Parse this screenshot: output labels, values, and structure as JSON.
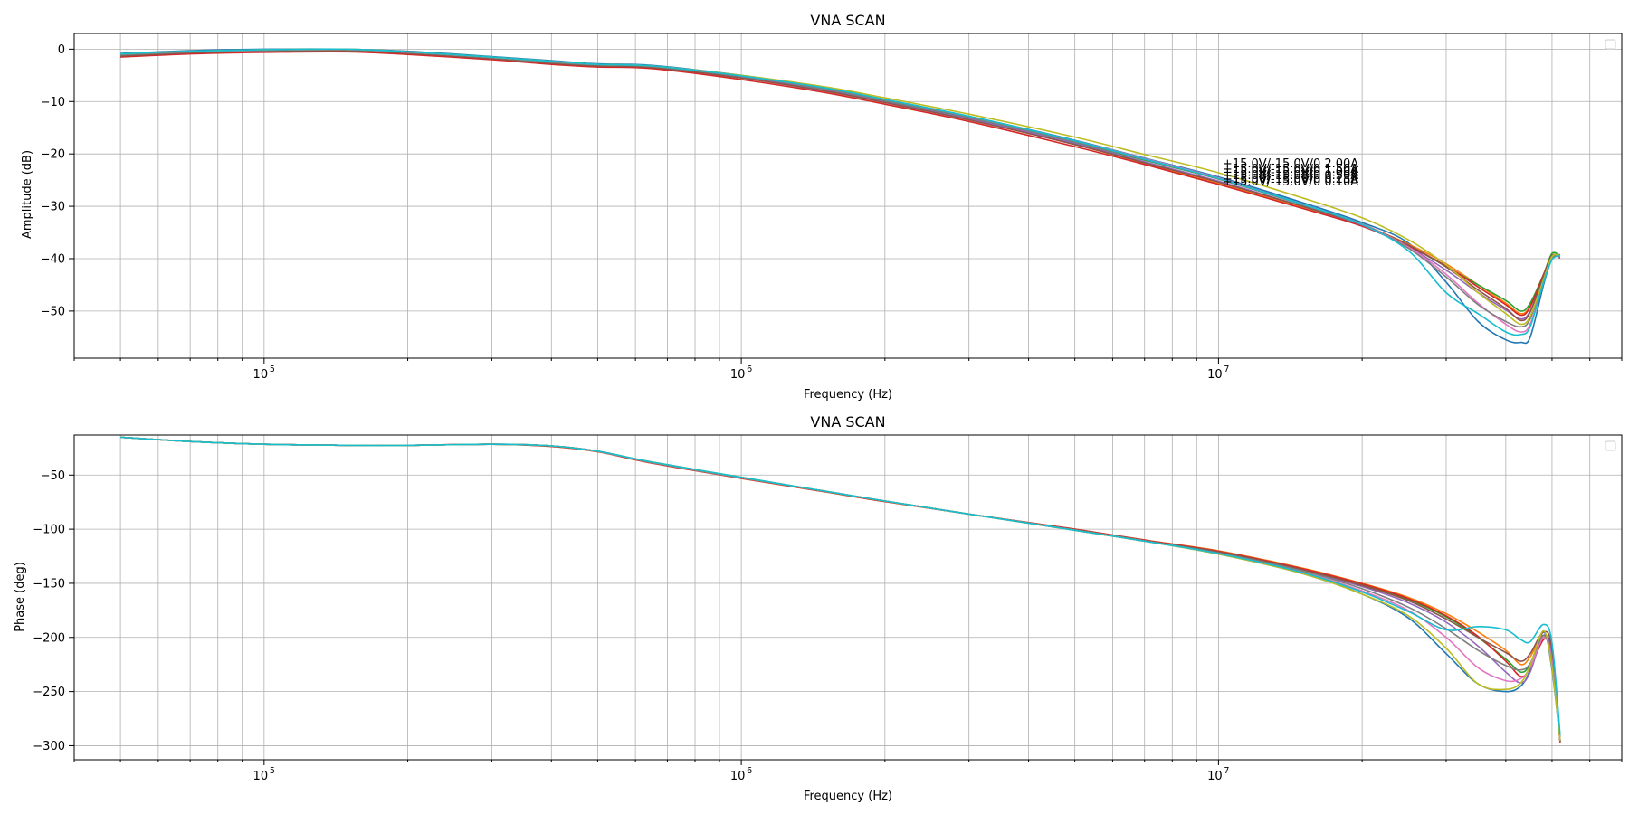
{
  "chart_data": [
    {
      "type": "line",
      "title": "VNA SCAN",
      "xlabel": "Frequency (Hz)",
      "ylabel": "Amplitude (dB)",
      "xscale": "log",
      "xlim": [
        40000,
        70000000
      ],
      "ylim": [
        -59,
        3
      ],
      "yticks": [
        0,
        -10,
        -20,
        -30,
        -40,
        -50
      ],
      "ytick_labels": [
        "0",
        "−10",
        "−20",
        "−30",
        "−40",
        "−50"
      ],
      "xticks": [
        100000,
        1000000,
        10000000
      ],
      "xtick_labels": [
        "10",
        "10",
        "10"
      ],
      "xtick_exponents": [
        "5",
        "6",
        "7"
      ],
      "grid": true,
      "legend": "top-right (empty)",
      "annotations": [
        {
          "text": "+15.0V/-15.0V/0 2.00A",
          "x": 10200000,
          "y": -22.6
        },
        {
          "text": "+15.0V/-15.0V/0 1.50A",
          "x": 10200000,
          "y": -23.6
        },
        {
          "text": "+15.0V/-15.0V/0 1.00A",
          "x": 10200000,
          "y": -24.2
        },
        {
          "text": "+15.0V/-15.0V/0 0.50A",
          "x": 10200000,
          "y": -24.8
        },
        {
          "text": "+15.0V/-15.0V/0 0.25A",
          "x": 10200000,
          "y": -25.5
        },
        {
          "text": "+15.0V/-15.0V/0 0.10A",
          "x": 10200000,
          "y": -26.0
        }
      ],
      "x": [
        50000,
        70000,
        100000,
        150000,
        200000,
        300000,
        400000,
        500000,
        650000,
        1000000,
        1500000,
        2000000,
        3000000,
        5000000,
        7000000,
        10000000,
        15000000,
        20000000,
        25000000,
        30000000,
        35000000,
        40000000,
        43000000,
        45000000,
        48000000,
        50000000,
        52000000
      ],
      "series": [
        {
          "color": "#1f77b4",
          "values": [
            -0.8,
            -0.3,
            0,
            0,
            -0.4,
            -1.4,
            -2.2,
            -2.8,
            -3.1,
            -5.0,
            -7.4,
            -9.6,
            -12.8,
            -17.4,
            -20.8,
            -24.4,
            -29.3,
            -33.1,
            -37.0,
            -44.5,
            -52.0,
            -55.5,
            -56.0,
            -55.0,
            -45.0,
            -40.0,
            -39.2
          ]
        },
        {
          "color": "#ff7f0e",
          "values": [
            -1.3,
            -0.7,
            -0.4,
            -0.3,
            -0.8,
            -1.8,
            -2.7,
            -3.2,
            -3.5,
            -5.5,
            -8.0,
            -10.2,
            -13.5,
            -18.2,
            -21.8,
            -25.6,
            -30.2,
            -33.6,
            -37.2,
            -41.0,
            -45.0,
            -48.5,
            -50.5,
            -49.0,
            -43.0,
            -39.5,
            -39.8
          ]
        },
        {
          "color": "#2ca02c",
          "values": [
            -1.1,
            -0.5,
            -0.2,
            -0.1,
            -0.6,
            -1.6,
            -2.5,
            -3.0,
            -3.3,
            -5.3,
            -7.7,
            -9.9,
            -13.1,
            -17.8,
            -21.2,
            -24.8,
            -29.7,
            -33.4,
            -37.5,
            -41.5,
            -45.0,
            -48.0,
            -50.0,
            -48.5,
            -43.0,
            -39.0,
            -39.5
          ]
        },
        {
          "color": "#d62728",
          "values": [
            -1.5,
            -0.9,
            -0.6,
            -0.5,
            -1.0,
            -2.0,
            -2.9,
            -3.4,
            -3.7,
            -5.8,
            -8.3,
            -10.5,
            -13.8,
            -18.6,
            -22.0,
            -25.8,
            -30.4,
            -33.8,
            -37.6,
            -41.4,
            -45.4,
            -48.8,
            -50.8,
            -49.2,
            -43.0,
            -39.4,
            -39.9
          ]
        },
        {
          "color": "#9467bd",
          "values": [
            -1.2,
            -0.6,
            -0.3,
            -0.2,
            -0.7,
            -1.7,
            -2.6,
            -3.1,
            -3.4,
            -5.4,
            -7.9,
            -10.1,
            -13.3,
            -18.0,
            -21.5,
            -25.2,
            -30.0,
            -33.6,
            -37.8,
            -42.2,
            -46.5,
            -49.8,
            -51.5,
            -50.0,
            -43.5,
            -39.5,
            -39.8
          ]
        },
        {
          "color": "#8c564b",
          "values": [
            -1.3,
            -0.7,
            -0.4,
            -0.3,
            -0.8,
            -1.8,
            -2.7,
            -3.2,
            -3.5,
            -5.5,
            -8.0,
            -10.2,
            -13.5,
            -18.2,
            -21.7,
            -25.4,
            -30.0,
            -33.5,
            -37.4,
            -41.6,
            -46.0,
            -49.5,
            -51.8,
            -50.2,
            -43.2,
            -39.4,
            -39.7
          ]
        },
        {
          "color": "#e377c2",
          "values": [
            -1.0,
            -0.5,
            -0.2,
            -0.1,
            -0.6,
            -1.6,
            -2.4,
            -2.9,
            -3.2,
            -5.1,
            -7.5,
            -9.7,
            -12.9,
            -17.5,
            -20.9,
            -24.6,
            -29.6,
            -33.4,
            -37.8,
            -43.0,
            -48.5,
            -52.5,
            -54.0,
            -52.5,
            -44.5,
            -40.0,
            -39.6
          ]
        },
        {
          "color": "#7f7f7f",
          "values": [
            -1.1,
            -0.5,
            -0.2,
            -0.1,
            -0.6,
            -1.6,
            -2.5,
            -3.0,
            -3.3,
            -5.2,
            -7.6,
            -9.8,
            -13.0,
            -17.7,
            -21.1,
            -24.8,
            -29.7,
            -33.5,
            -38.0,
            -43.5,
            -48.8,
            -52.0,
            -53.0,
            -51.5,
            -44.0,
            -39.8,
            -39.6
          ]
        },
        {
          "color": "#bcbd22",
          "values": [
            -0.9,
            -0.4,
            -0.1,
            0,
            -0.5,
            -1.5,
            -2.3,
            -2.9,
            -3.2,
            -5.0,
            -7.2,
            -9.3,
            -12.4,
            -16.8,
            -20.1,
            -23.6,
            -28.4,
            -32.2,
            -36.4,
            -41.2,
            -46.5,
            -50.5,
            -52.5,
            -51.0,
            -44.0,
            -39.6,
            -39.4
          ]
        },
        {
          "color": "#17becf",
          "values": [
            -0.9,
            -0.4,
            -0.1,
            0,
            -0.5,
            -1.5,
            -2.3,
            -2.9,
            -3.2,
            -5.1,
            -7.4,
            -9.6,
            -12.8,
            -17.5,
            -21.0,
            -24.7,
            -29.6,
            -33.5,
            -38.5,
            -46.5,
            -50.5,
            -54.0,
            -54.5,
            -53.0,
            -44.5,
            -40.2,
            -39.4
          ]
        }
      ]
    },
    {
      "type": "line",
      "title": "VNA SCAN",
      "xlabel": "Frequency (Hz)",
      "ylabel": "Phase (deg)",
      "xscale": "log",
      "xlim": [
        40000,
        70000000
      ],
      "ylim": [
        -313,
        -13
      ],
      "yticks": [
        -50,
        -100,
        -150,
        -200,
        -250,
        -300
      ],
      "ytick_labels": [
        "−50",
        "−100",
        "−150",
        "−200",
        "−250",
        "−300"
      ],
      "xticks": [
        100000,
        1000000,
        10000000
      ],
      "xtick_labels": [
        "10",
        "10",
        "10"
      ],
      "xtick_exponents": [
        "5",
        "6",
        "7"
      ],
      "grid": true,
      "legend": "top-right (empty)",
      "x": [
        50000,
        70000,
        100000,
        150000,
        200000,
        300000,
        400000,
        500000,
        650000,
        1000000,
        1500000,
        2000000,
        3000000,
        5000000,
        7000000,
        10000000,
        15000000,
        20000000,
        25000000,
        30000000,
        35000000,
        40000000,
        43000000,
        45000000,
        48000000,
        50000000,
        52000000
      ],
      "series": [
        {
          "color": "#1f77b4",
          "values": [
            -15,
            -19,
            -21.5,
            -22.5,
            -22.5,
            -21.5,
            -23,
            -28,
            -38,
            -52,
            -65,
            -74,
            -86,
            -101,
            -111,
            -123,
            -141,
            -160,
            -182,
            -215,
            -243,
            -250,
            -245,
            -230,
            -195,
            -230,
            -295
          ]
        },
        {
          "color": "#ff7f0e",
          "values": [
            -15,
            -19,
            -21.5,
            -22.5,
            -22.5,
            -21.5,
            -23.5,
            -28.5,
            -39,
            -53,
            -65.5,
            -74.5,
            -86,
            -100,
            -110,
            -120,
            -136,
            -150,
            -163,
            -178,
            -195,
            -212,
            -225,
            -218,
            -198,
            -222,
            -297
          ]
        },
        {
          "color": "#2ca02c",
          "values": [
            -15,
            -19,
            -21.5,
            -22.5,
            -22.5,
            -21.5,
            -23,
            -28,
            -38.5,
            -52.5,
            -65,
            -74,
            -86,
            -100.5,
            -110.5,
            -121,
            -137,
            -151,
            -165,
            -181,
            -200,
            -220,
            -232,
            -225,
            -200,
            -215,
            -296
          ]
        },
        {
          "color": "#d62728",
          "values": [
            -15,
            -19,
            -21.5,
            -22.5,
            -22.5,
            -21.5,
            -23.5,
            -28.5,
            -39,
            -53,
            -65.5,
            -74.5,
            -86,
            -100,
            -110,
            -120.5,
            -136.5,
            -150.5,
            -164,
            -180,
            -199,
            -222,
            -236,
            -228,
            -202,
            -212,
            -297
          ]
        },
        {
          "color": "#9467bd",
          "values": [
            -15,
            -19,
            -21.5,
            -22.5,
            -22.5,
            -21.5,
            -23,
            -28,
            -38.5,
            -52.5,
            -65,
            -74,
            -86,
            -100.5,
            -110.5,
            -121.5,
            -138,
            -153,
            -168,
            -186,
            -208,
            -232,
            -242,
            -232,
            -198,
            -218,
            -296
          ]
        },
        {
          "color": "#8c564b",
          "values": [
            -15,
            -19,
            -21.5,
            -22.5,
            -22.5,
            -21.5,
            -23,
            -28,
            -38.5,
            -52.5,
            -65,
            -74,
            -86,
            -100.5,
            -110.5,
            -121,
            -137.5,
            -152,
            -166,
            -183,
            -200,
            -214,
            -222,
            -215,
            -195,
            -210,
            -296
          ]
        },
        {
          "color": "#e377c2",
          "values": [
            -15,
            -19,
            -21.5,
            -22.5,
            -22.5,
            -21.5,
            -23,
            -28,
            -38.5,
            -52.5,
            -65,
            -74,
            -86,
            -101,
            -111,
            -122.5,
            -139.5,
            -157,
            -175,
            -200,
            -228,
            -240,
            -238,
            -228,
            -200,
            -222,
            -295
          ]
        },
        {
          "color": "#7f7f7f",
          "values": [
            -15,
            -19,
            -21.5,
            -22.5,
            -22.5,
            -21.5,
            -23,
            -28,
            -38.5,
            -52.5,
            -65,
            -74,
            -86,
            -101,
            -111,
            -122,
            -138.5,
            -155,
            -172,
            -192,
            -212,
            -226,
            -230,
            -224,
            -198,
            -225,
            -296
          ]
        },
        {
          "color": "#bcbd22",
          "values": [
            -15,
            -19,
            -21.5,
            -22.5,
            -22.5,
            -21.5,
            -23,
            -28,
            -38,
            -52,
            -65,
            -74,
            -86,
            -101,
            -111,
            -123,
            -141,
            -160,
            -180,
            -210,
            -243,
            -248,
            -242,
            -226,
            -194,
            -228,
            -295
          ]
        },
        {
          "color": "#17becf",
          "values": [
            -15,
            -19,
            -21.5,
            -22.5,
            -22.5,
            -21.5,
            -23,
            -28,
            -38,
            -52,
            -65,
            -74,
            -86,
            -101,
            -111,
            -122.5,
            -140,
            -158,
            -176,
            -193,
            -190,
            -193,
            -202,
            -204,
            -188,
            -205,
            -290
          ]
        }
      ]
    }
  ]
}
